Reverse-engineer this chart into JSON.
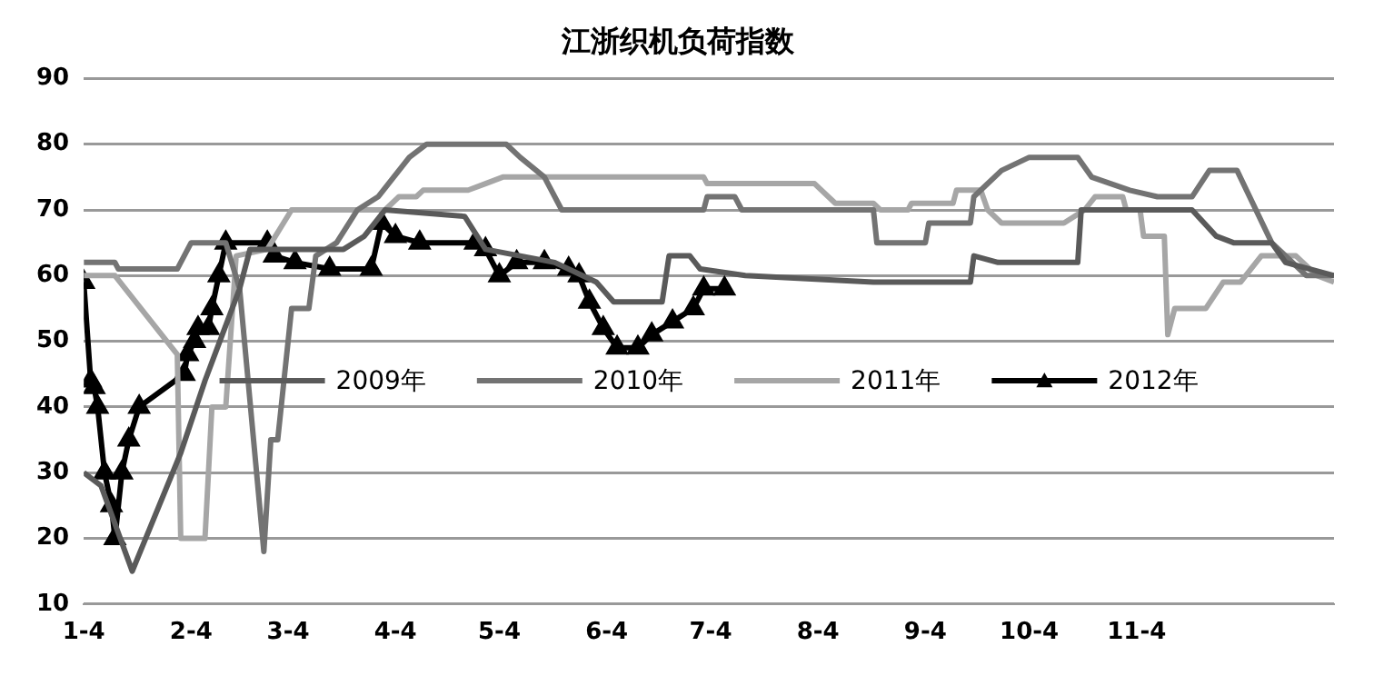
{
  "chart_data": {
    "type": "line",
    "title": "江浙织机负荷指数",
    "xlim": [
      "--01-04",
      "--12-31"
    ],
    "xticks": [
      {
        "value": "--01-04",
        "label": "1-4"
      },
      {
        "value": "--02-04",
        "label": "2-4"
      },
      {
        "value": "--03-04",
        "label": "3-4"
      },
      {
        "value": "--04-04",
        "label": "4-4"
      },
      {
        "value": "--05-04",
        "label": "5-4"
      },
      {
        "value": "--06-04",
        "label": "6-4"
      },
      {
        "value": "--07-04",
        "label": "7-4"
      },
      {
        "value": "--08-04",
        "label": "8-4"
      },
      {
        "value": "--09-04",
        "label": "9-4"
      },
      {
        "value": "--10-04",
        "label": "10-4"
      },
      {
        "value": "--11-04",
        "label": "11-4"
      }
    ],
    "ylim": [
      10,
      90
    ],
    "yticks": [
      10,
      20,
      30,
      40,
      50,
      60,
      70,
      80,
      90
    ],
    "grid": "y",
    "legend": "center",
    "marker": "none",
    "line_style": "solid",
    "series": [
      {
        "name": "2009年",
        "color": "#5a5a5a",
        "x": [
          "--01-04",
          "--01-09",
          "--01-18",
          "--02-01",
          "--02-08",
          "--02-13",
          "--02-18",
          "--02-21",
          "--03-20",
          "--03-26",
          "--04-01",
          "--04-24",
          "--04-30",
          "--05-20",
          "--06-01",
          "--06-06",
          "--06-20",
          "--06-22",
          "--06-28",
          "--07-01",
          "--07-14",
          "--08-20",
          "--09-17",
          "--09-18",
          "--09-25",
          "--10-18",
          "--10-19",
          "--11-20",
          "--11-27",
          "--12-02",
          "--12-13",
          "--12-17",
          "--12-31"
        ],
        "values": [
          30,
          28,
          15,
          33,
          44,
          51,
          58,
          64,
          64,
          66,
          70,
          69,
          64,
          62,
          59,
          56,
          56,
          63,
          63,
          61,
          60,
          59,
          59,
          63,
          62,
          62,
          70,
          70,
          66,
          65,
          65,
          62,
          60
        ]
      },
      {
        "name": "2010年",
        "color": "#737373",
        "x": [
          "--01-04",
          "--01-13",
          "--01-14",
          "--01-31",
          "--02-04",
          "--02-14",
          "--02-18",
          "--02-25",
          "--02-27",
          "--03-01",
          "--03-05",
          "--03-10",
          "--03-12",
          "--03-18",
          "--03-24",
          "--03-30",
          "--04-05",
          "--04-08",
          "--04-13",
          "--05-06",
          "--05-10",
          "--05-17",
          "--05-22",
          "--07-02",
          "--07-03",
          "--07-11",
          "--07-13",
          "--08-20",
          "--08-21",
          "--09-04",
          "--09-05",
          "--09-17",
          "--09-18",
          "--09-26",
          "--10-04",
          "--10-18",
          "--10-22",
          "--11-02",
          "--11-10",
          "--11-20",
          "--11-25",
          "--12-03",
          "--12-13",
          "--12-23",
          "--12-31"
        ],
        "values": [
          62,
          62,
          61,
          61,
          65,
          65,
          58,
          18,
          35,
          35,
          55,
          55,
          63,
          65,
          70,
          72,
          76,
          78,
          80,
          80,
          78,
          75,
          70,
          70,
          72,
          72,
          70,
          70,
          65,
          65,
          68,
          68,
          72,
          76,
          78,
          78,
          75,
          73,
          72,
          72,
          76,
          76,
          65,
          60,
          60
        ]
      },
      {
        "name": "2011年",
        "color": "#a6a6a6",
        "x": [
          "--01-04",
          "--01-13",
          "--01-31",
          "--02-01",
          "--02-08",
          "--02-10",
          "--02-14",
          "--02-17",
          "--02-26",
          "--03-05",
          "--04-01",
          "--04-05",
          "--04-10",
          "--04-12",
          "--04-25",
          "--04-30",
          "--05-05",
          "--07-02",
          "--07-03",
          "--08-03",
          "--08-09",
          "--08-20",
          "--08-22",
          "--08-30",
          "--08-31",
          "--09-12",
          "--09-13",
          "--09-20",
          "--09-22",
          "--09-26",
          "--10-14",
          "--10-20",
          "--10-23",
          "--10-31",
          "--11-01",
          "--11-05",
          "--11-06",
          "--11-12",
          "--11-13",
          "--11-15",
          "--11-24",
          "--11-29",
          "--12-04",
          "--12-10",
          "--12-20",
          "--12-26",
          "--12-31"
        ],
        "values": [
          60,
          60,
          48,
          20,
          20,
          40,
          40,
          63,
          64,
          70,
          70,
          72,
          72,
          73,
          73,
          74,
          75,
          75,
          74,
          74,
          71,
          71,
          70,
          70,
          71,
          71,
          73,
          73,
          70,
          68,
          68,
          70,
          72,
          72,
          70,
          70,
          66,
          66,
          51,
          55,
          55,
          59,
          59,
          63,
          63,
          60,
          59
        ]
      },
      {
        "name": "2012年",
        "color": "#000000",
        "marker": "triangle",
        "x": [
          "--01-04",
          "--01-06",
          "--01-07",
          "--01-08",
          "--01-10",
          "--01-12",
          "--01-13",
          "--01-15",
          "--01-17",
          "--01-20",
          "--02-02",
          "--02-03",
          "--02-05",
          "--02-06",
          "--02-09",
          "--02-10",
          "--02-12",
          "--02-14",
          "--02-26",
          "--02-28",
          "--03-06",
          "--03-16",
          "--03-28",
          "--03-31",
          "--04-04",
          "--04-11",
          "--04-27",
          "--04-30",
          "--05-04",
          "--05-09",
          "--05-17",
          "--05-24",
          "--05-27",
          "--05-30",
          "--06-03",
          "--06-07",
          "--06-13",
          "--06-17",
          "--06-23",
          "--06-29",
          "--07-02",
          "--07-08"
        ],
        "values": [
          59,
          44,
          43,
          40,
          30,
          25,
          20,
          30,
          35,
          40,
          45,
          48,
          50,
          52,
          52,
          55,
          60,
          65,
          65,
          63,
          62,
          61,
          61,
          68,
          66,
          65,
          65,
          64,
          60,
          62,
          62,
          61,
          60,
          56,
          52,
          49,
          49,
          51,
          53,
          55,
          58,
          58
        ]
      }
    ]
  }
}
